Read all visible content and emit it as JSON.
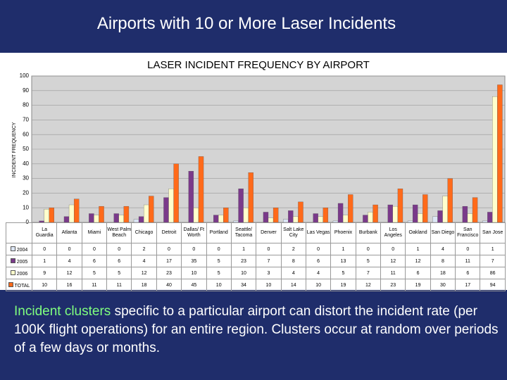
{
  "header": {
    "title": "Airports with 10 or More Laser Incidents"
  },
  "chart_data": {
    "type": "bar",
    "title": "LASER INCIDENT FREQUENCY BY AIRPORT",
    "y_label": "INCIDENT FREQUENCY",
    "categories": [
      "La Guardia",
      "Atlanta",
      "Miami",
      "West Palm Beach",
      "Chicago",
      "Detroit",
      "Dallas/ Ft Worth",
      "Portland",
      "Seattle/ Tacoma",
      "Denver",
      "Salt Lake City",
      "Las Vegas",
      "Phoenix",
      "Burbank",
      "Los Angeles",
      "Oakland",
      "San Diego",
      "San Francisco",
      "San Jose"
    ],
    "series": [
      {
        "name": "2004",
        "color": "#dce6f5",
        "values": [
          0,
          0,
          0,
          0,
          2,
          0,
          0,
          0,
          1,
          0,
          2,
          0,
          1,
          0,
          0,
          1,
          4,
          0,
          1
        ]
      },
      {
        "name": "2005",
        "color": "#7a3a8a",
        "values": [
          1,
          4,
          6,
          6,
          4,
          17,
          35,
          5,
          23,
          7,
          8,
          6,
          13,
          5,
          12,
          12,
          8,
          11,
          7
        ]
      },
      {
        "name": "2006",
        "color": "#ffffcc",
        "values": [
          9,
          12,
          5,
          5,
          12,
          23,
          10,
          5,
          10,
          3,
          4,
          4,
          5,
          7,
          11,
          6,
          18,
          6,
          86
        ]
      },
      {
        "name": "TOTAL",
        "color": "#ff6a1a",
        "values": [
          10,
          16,
          11,
          11,
          18,
          40,
          45,
          10,
          34,
          10,
          14,
          10,
          19,
          12,
          23,
          19,
          30,
          17,
          94
        ]
      }
    ],
    "ylim": [
      0,
      100
    ],
    "yticks": [
      0,
      10,
      20,
      30,
      40,
      50,
      60,
      70,
      80,
      90,
      100
    ],
    "grid": true
  },
  "body": [
    "Incident clusters",
    "specific to a particular airport can distort the incident rate (per 100K flight operations) for an entire region. Clusters occur at random over periods of a few days or months."
  ]
}
